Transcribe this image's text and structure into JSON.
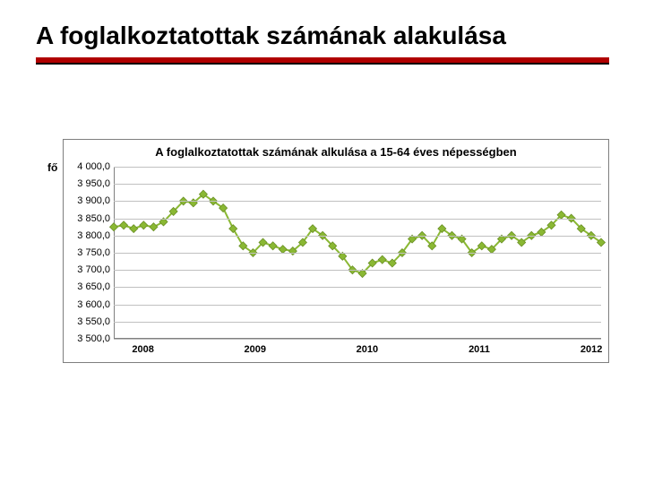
{
  "slide": {
    "title": "A foglalkoztatottak számának alakulása"
  },
  "rules": {
    "red_color": "#b00000",
    "black_color": "#000000"
  },
  "chart": {
    "type": "line",
    "title": "A foglalkoztatottak számának alkulása a 15-64 éves népességben",
    "y_axis_label": "fő",
    "ylim": [
      3500,
      4000
    ],
    "ytick_step": 50,
    "ytick_labels": [
      "4 000,0",
      "3 950,0",
      "3 900,0",
      "3 850,0",
      "3 800,0",
      "3 750,0",
      "3 700,0",
      "3 650,0",
      "3 600,0",
      "3 550,0",
      "3 500,0"
    ],
    "x_categories": [
      "2008",
      "2009",
      "2010",
      "2011",
      "2012"
    ],
    "x_category_positions": [
      0.06,
      0.29,
      0.52,
      0.75,
      0.98
    ],
    "values": [
      3825,
      3830,
      3820,
      3830,
      3825,
      3840,
      3870,
      3900,
      3895,
      3920,
      3900,
      3880,
      3820,
      3770,
      3750,
      3780,
      3770,
      3760,
      3755,
      3780,
      3820,
      3800,
      3770,
      3740,
      3700,
      3690,
      3720,
      3730,
      3720,
      3750,
      3790,
      3800,
      3770,
      3820,
      3800,
      3790,
      3750,
      3770,
      3760,
      3790,
      3800,
      3780,
      3800,
      3810,
      3830,
      3860,
      3850,
      3820,
      3800,
      3780
    ],
    "line_color": "#8ab833",
    "marker_fill": "#8ab833",
    "marker_stroke": "#6a8f26",
    "marker_size": 3.2,
    "line_width": 2,
    "grid_color": "#c0c0c0",
    "plot_border_color": "#808080",
    "background_color": "#ffffff",
    "title_fontsize": 13,
    "tick_fontsize": 11
  }
}
